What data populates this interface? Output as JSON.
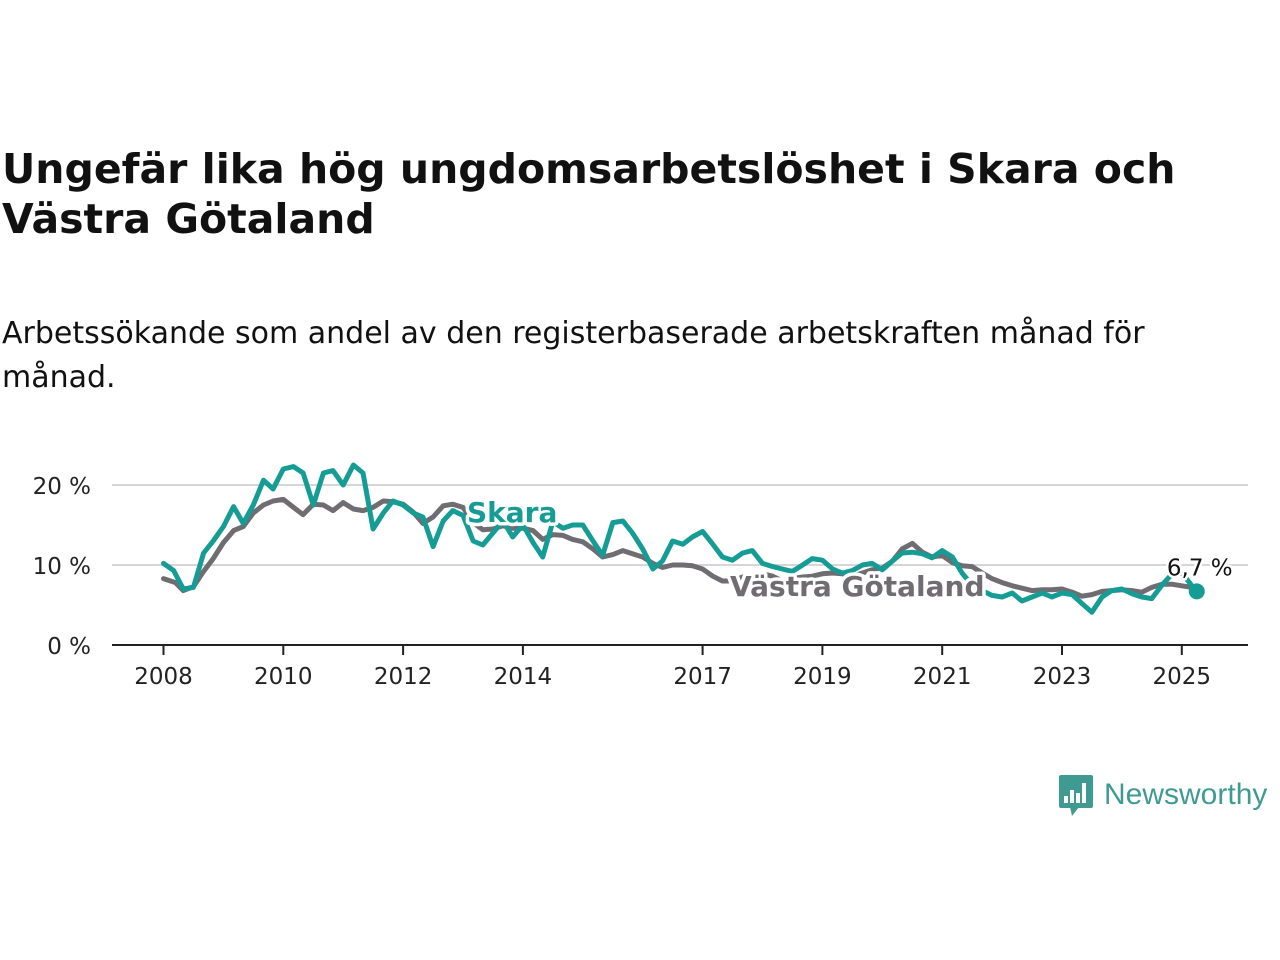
{
  "title": "Ungefär lika hög ungdomsarbetslöshet i Skara och Västra Götaland",
  "subtitle": "Arbetssökande som andel av den registerbaserade arbetskraften månad för månad.",
  "brand": {
    "name": "Newsworthy",
    "color": "#3f9b92",
    "icon": "bar-chart-speech-bubble-icon"
  },
  "chart_data": {
    "type": "line",
    "ylim": [
      0,
      25
    ],
    "yticks": [
      0,
      10,
      20
    ],
    "ytick_labels": [
      "0 %",
      "10 %",
      "20 %"
    ],
    "xlim": [
      2007.75,
      2026.4
    ],
    "xticks": [
      2008,
      2010,
      2012,
      2014,
      2017,
      2019,
      2021,
      2023,
      2025
    ],
    "xtick_labels": [
      "2008",
      "2010",
      "2012",
      "2014",
      "2017",
      "2019",
      "2021",
      "2023",
      "2025"
    ],
    "grid": true,
    "last_value_label": "6,7 %",
    "series": [
      {
        "name": "Västra Götaland",
        "color": "#6f6d71",
        "x": [
          2008.0,
          2008.2,
          2008.33,
          2008.5,
          2008.67,
          2008.83,
          2009.0,
          2009.17,
          2009.33,
          2009.5,
          2009.67,
          2009.83,
          2010.0,
          2010.17,
          2010.33,
          2010.5,
          2010.67,
          2010.83,
          2011.0,
          2011.17,
          2011.33,
          2011.5,
          2011.67,
          2011.83,
          2012.0,
          2012.17,
          2012.33,
          2012.5,
          2012.67,
          2012.83,
          2013.0,
          2013.17,
          2013.33,
          2013.5,
          2013.67,
          2013.83,
          2014.0,
          2014.17,
          2014.33,
          2014.5,
          2014.67,
          2014.83,
          2015.0,
          2015.17,
          2015.33,
          2015.5,
          2015.67,
          2015.83,
          2016.0,
          2016.17,
          2016.33,
          2016.5,
          2016.67,
          2016.83,
          2017.0,
          2017.17,
          2017.33,
          2017.5,
          2017.67,
          2017.83,
          2018.0,
          2018.17,
          2018.33,
          2018.5,
          2018.67,
          2018.83,
          2019.0,
          2019.17,
          2019.33,
          2019.5,
          2019.67,
          2019.83,
          2020.0,
          2020.17,
          2020.33,
          2020.5,
          2020.67,
          2020.83,
          2021.0,
          2021.17,
          2021.33,
          2021.5,
          2021.67,
          2021.83,
          2022.0,
          2022.17,
          2022.33,
          2022.5,
          2022.67,
          2022.83,
          2023.0,
          2023.17,
          2023.33,
          2023.5,
          2023.67,
          2023.83,
          2024.0,
          2024.17,
          2024.33,
          2024.5,
          2024.67,
          2024.83,
          2025.0,
          2025.17,
          2025.25
        ],
        "values": [
          8.3,
          7.8,
          6.8,
          7.3,
          9.2,
          10.8,
          12.8,
          14.3,
          14.8,
          16.5,
          17.5,
          18.0,
          18.2,
          17.2,
          16.3,
          17.6,
          17.5,
          16.8,
          17.8,
          17.0,
          16.8,
          17.2,
          18.0,
          17.9,
          17.6,
          16.6,
          15.2,
          16.0,
          17.4,
          17.6,
          17.2,
          15.3,
          14.4,
          14.5,
          14.9,
          14.6,
          14.6,
          14.3,
          13.2,
          13.8,
          13.7,
          13.2,
          12.9,
          12.0,
          11.0,
          11.3,
          11.8,
          11.4,
          11.0,
          10.2,
          9.7,
          10.0,
          10.0,
          9.9,
          9.5,
          8.6,
          8.0,
          8.0,
          8.5,
          8.7,
          8.9,
          8.6,
          8.0,
          8.3,
          8.5,
          8.6,
          8.9,
          9.0,
          8.9,
          8.6,
          9.0,
          9.4,
          9.6,
          10.5,
          12.0,
          12.7,
          11.6,
          11.0,
          11.2,
          10.3,
          9.9,
          9.8,
          9.0,
          8.3,
          7.8,
          7.4,
          7.1,
          6.8,
          6.9,
          6.9,
          7.0,
          6.6,
          6.1,
          6.3,
          6.7,
          6.8,
          6.9,
          6.8,
          6.6,
          7.2,
          7.6,
          7.6,
          7.4,
          7.2,
          7.0
        ]
      },
      {
        "name": "Skara",
        "color": "#159d95",
        "x": [
          2008.0,
          2008.17,
          2008.33,
          2008.5,
          2008.67,
          2008.83,
          2009.0,
          2009.17,
          2009.33,
          2009.5,
          2009.67,
          2009.83,
          2010.0,
          2010.17,
          2010.33,
          2010.5,
          2010.67,
          2010.83,
          2011.0,
          2011.17,
          2011.33,
          2011.5,
          2011.67,
          2011.83,
          2012.0,
          2012.17,
          2012.33,
          2012.5,
          2012.67,
          2012.83,
          2013.0,
          2013.17,
          2013.33,
          2013.5,
          2013.67,
          2013.83,
          2014.0,
          2014.17,
          2014.33,
          2014.5,
          2014.67,
          2014.83,
          2015.0,
          2015.17,
          2015.33,
          2015.5,
          2015.67,
          2015.83,
          2016.0,
          2016.17,
          2016.33,
          2016.5,
          2016.67,
          2016.83,
          2017.0,
          2017.17,
          2017.33,
          2017.5,
          2017.67,
          2017.83,
          2018.0,
          2018.17,
          2018.33,
          2018.5,
          2018.67,
          2018.83,
          2019.0,
          2019.17,
          2019.33,
          2019.5,
          2019.67,
          2019.83,
          2020.0,
          2020.17,
          2020.33,
          2020.5,
          2020.67,
          2020.83,
          2021.0,
          2021.17,
          2021.33,
          2021.5,
          2021.67,
          2021.83,
          2022.0,
          2022.17,
          2022.33,
          2022.5,
          2022.67,
          2022.83,
          2023.0,
          2023.17,
          2023.33,
          2023.5,
          2023.67,
          2023.83,
          2024.0,
          2024.17,
          2024.33,
          2024.5,
          2024.67,
          2024.83,
          2025.0,
          2025.17,
          2025.25
        ],
        "values": [
          10.2,
          9.3,
          7.0,
          7.2,
          11.5,
          13.0,
          14.8,
          17.3,
          15.2,
          17.5,
          20.6,
          19.5,
          22.0,
          22.3,
          21.5,
          17.5,
          21.5,
          21.8,
          20.0,
          22.5,
          21.5,
          14.5,
          16.5,
          18.0,
          17.5,
          16.5,
          16.0,
          12.3,
          15.5,
          16.8,
          16.2,
          13.0,
          12.5,
          14.0,
          15.5,
          13.5,
          15.0,
          12.8,
          11.0,
          15.4,
          14.6,
          15.0,
          15.0,
          13.0,
          11.2,
          15.3,
          15.5,
          14.0,
          12.0,
          9.5,
          10.5,
          13.0,
          12.6,
          13.5,
          14.2,
          12.6,
          11.0,
          10.6,
          11.5,
          11.8,
          10.2,
          9.8,
          9.5,
          9.2,
          10.0,
          10.8,
          10.6,
          9.5,
          9.0,
          9.3,
          10.0,
          10.2,
          9.4,
          10.5,
          11.5,
          11.6,
          11.4,
          10.9,
          11.8,
          11.0,
          9.0,
          7.5,
          6.8,
          6.2,
          6.0,
          6.5,
          5.5,
          6.0,
          6.5,
          6.0,
          6.5,
          6.3,
          5.2,
          4.1,
          6.0,
          6.8,
          7.0,
          6.4,
          6.0,
          5.8,
          7.5,
          8.8,
          9.0,
          7.4,
          6.7
        ]
      }
    ]
  }
}
